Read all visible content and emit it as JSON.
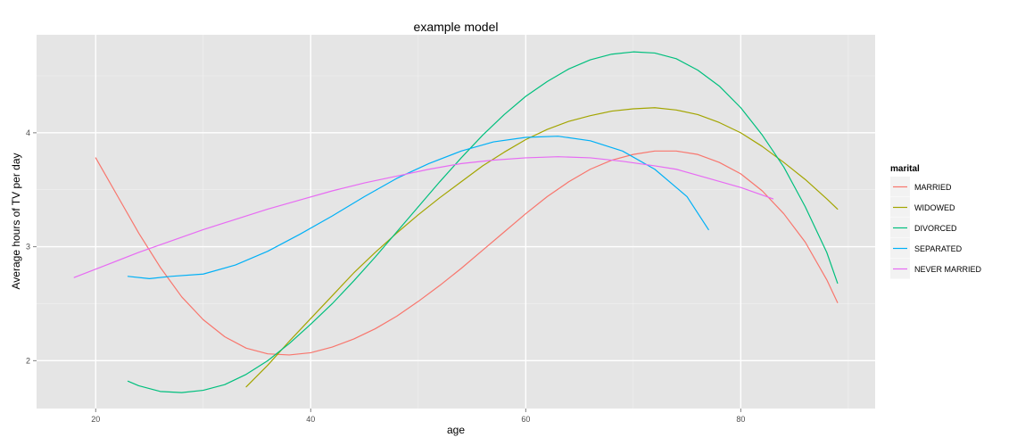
{
  "chart_data": {
    "type": "line",
    "title": "example model",
    "xlabel": "age",
    "ylabel": "Average hours of TV per day",
    "xlim": [
      14.5,
      92.5
    ],
    "ylim": [
      1.58,
      4.86
    ],
    "x_ticks": [
      20,
      40,
      60,
      80
    ],
    "y_ticks": [
      2,
      3,
      4
    ],
    "grid": true,
    "legend": {
      "title": "marital",
      "placement": "right"
    },
    "series": [
      {
        "name": "MARRIED",
        "color": "#F8766D",
        "points": [
          [
            20,
            3.78
          ],
          [
            22,
            3.45
          ],
          [
            24,
            3.12
          ],
          [
            26,
            2.82
          ],
          [
            28,
            2.56
          ],
          [
            30,
            2.36
          ],
          [
            32,
            2.21
          ],
          [
            34,
            2.11
          ],
          [
            36,
            2.06
          ],
          [
            38,
            2.05
          ],
          [
            40,
            2.07
          ],
          [
            42,
            2.12
          ],
          [
            44,
            2.19
          ],
          [
            46,
            2.28
          ],
          [
            48,
            2.39
          ],
          [
            50,
            2.52
          ],
          [
            52,
            2.66
          ],
          [
            54,
            2.81
          ],
          [
            56,
            2.97
          ],
          [
            58,
            3.13
          ],
          [
            60,
            3.29
          ],
          [
            62,
            3.44
          ],
          [
            64,
            3.57
          ],
          [
            66,
            3.68
          ],
          [
            68,
            3.76
          ],
          [
            70,
            3.81
          ],
          [
            72,
            3.84
          ],
          [
            74,
            3.84
          ],
          [
            76,
            3.81
          ],
          [
            78,
            3.74
          ],
          [
            80,
            3.64
          ],
          [
            82,
            3.49
          ],
          [
            84,
            3.29
          ],
          [
            86,
            3.04
          ],
          [
            88,
            2.71
          ],
          [
            89,
            2.51
          ]
        ]
      },
      {
        "name": "WIDOWED",
        "color": "#A3A500",
        "points": [
          [
            34,
            1.77
          ],
          [
            36,
            1.96
          ],
          [
            38,
            2.17
          ],
          [
            40,
            2.37
          ],
          [
            42,
            2.57
          ],
          [
            44,
            2.77
          ],
          [
            46,
            2.95
          ],
          [
            48,
            3.12
          ],
          [
            50,
            3.28
          ],
          [
            52,
            3.43
          ],
          [
            54,
            3.57
          ],
          [
            56,
            3.71
          ],
          [
            58,
            3.83
          ],
          [
            60,
            3.94
          ],
          [
            62,
            4.03
          ],
          [
            64,
            4.1
          ],
          [
            66,
            4.15
          ],
          [
            68,
            4.19
          ],
          [
            70,
            4.21
          ],
          [
            72,
            4.22
          ],
          [
            74,
            4.2
          ],
          [
            76,
            4.16
          ],
          [
            78,
            4.09
          ],
          [
            80,
            4.0
          ],
          [
            82,
            3.88
          ],
          [
            84,
            3.74
          ],
          [
            86,
            3.59
          ],
          [
            88,
            3.42
          ],
          [
            89,
            3.33
          ]
        ]
      },
      {
        "name": "DIVORCED",
        "color": "#00BF7D",
        "points": [
          [
            23,
            1.82
          ],
          [
            24,
            1.78
          ],
          [
            26,
            1.73
          ],
          [
            28,
            1.72
          ],
          [
            30,
            1.74
          ],
          [
            32,
            1.79
          ],
          [
            34,
            1.88
          ],
          [
            36,
            2.0
          ],
          [
            38,
            2.15
          ],
          [
            40,
            2.32
          ],
          [
            42,
            2.5
          ],
          [
            44,
            2.7
          ],
          [
            46,
            2.91
          ],
          [
            48,
            3.13
          ],
          [
            50,
            3.35
          ],
          [
            52,
            3.57
          ],
          [
            54,
            3.78
          ],
          [
            56,
            3.98
          ],
          [
            58,
            4.16
          ],
          [
            60,
            4.32
          ],
          [
            62,
            4.45
          ],
          [
            64,
            4.56
          ],
          [
            66,
            4.64
          ],
          [
            68,
            4.69
          ],
          [
            70,
            4.71
          ],
          [
            72,
            4.7
          ],
          [
            74,
            4.65
          ],
          [
            76,
            4.55
          ],
          [
            78,
            4.41
          ],
          [
            80,
            4.22
          ],
          [
            82,
            3.98
          ],
          [
            84,
            3.7
          ],
          [
            86,
            3.35
          ],
          [
            88,
            2.95
          ],
          [
            89,
            2.68
          ]
        ]
      },
      {
        "name": "SEPARATED",
        "color": "#00B0F6",
        "points": [
          [
            23,
            2.74
          ],
          [
            25,
            2.72
          ],
          [
            27,
            2.74
          ],
          [
            30,
            2.76
          ],
          [
            33,
            2.84
          ],
          [
            36,
            2.96
          ],
          [
            39,
            3.11
          ],
          [
            42,
            3.27
          ],
          [
            45,
            3.44
          ],
          [
            48,
            3.6
          ],
          [
            51,
            3.73
          ],
          [
            54,
            3.84
          ],
          [
            57,
            3.92
          ],
          [
            60,
            3.96
          ],
          [
            63,
            3.97
          ],
          [
            66,
            3.93
          ],
          [
            69,
            3.84
          ],
          [
            72,
            3.68
          ],
          [
            75,
            3.44
          ],
          [
            77,
            3.15
          ]
        ]
      },
      {
        "name": "NEVER MARRIED",
        "color": "#E76BF3",
        "points": [
          [
            18,
            2.73
          ],
          [
            21,
            2.84
          ],
          [
            24,
            2.95
          ],
          [
            27,
            3.05
          ],
          [
            30,
            3.15
          ],
          [
            33,
            3.24
          ],
          [
            36,
            3.33
          ],
          [
            39,
            3.41
          ],
          [
            42,
            3.49
          ],
          [
            45,
            3.56
          ],
          [
            48,
            3.62
          ],
          [
            51,
            3.68
          ],
          [
            54,
            3.73
          ],
          [
            57,
            3.76
          ],
          [
            60,
            3.78
          ],
          [
            63,
            3.79
          ],
          [
            66,
            3.78
          ],
          [
            69,
            3.75
          ],
          [
            72,
            3.71
          ],
          [
            74,
            3.68
          ],
          [
            77,
            3.6
          ],
          [
            80,
            3.52
          ],
          [
            83,
            3.42
          ]
        ]
      }
    ]
  }
}
